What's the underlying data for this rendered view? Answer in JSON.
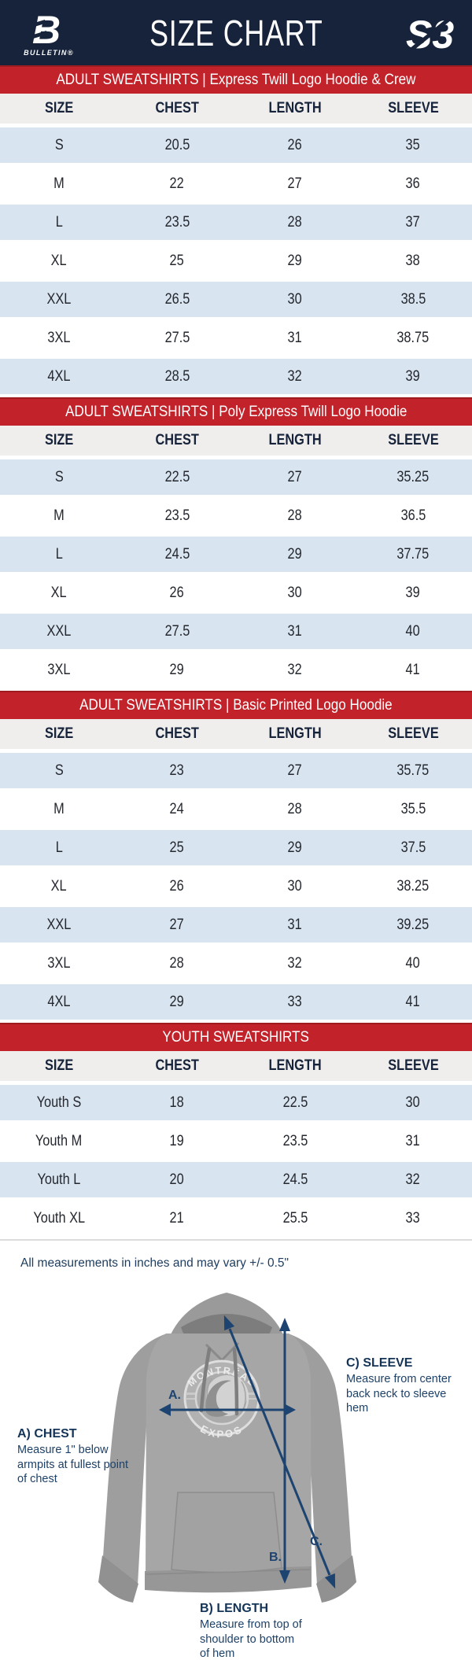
{
  "header": {
    "title": "SIZE CHART",
    "left_logo_mark": "B",
    "left_logo_text": "BULLETIN®",
    "right_logo_mark": "S3"
  },
  "tables": [
    {
      "banner": "ADULT SWEATSHIRTS | Express Twill Logo Hoodie & Crew",
      "columns": [
        "SIZE",
        "CHEST",
        "LENGTH",
        "SLEEVE"
      ],
      "rows": [
        [
          "S",
          "20.5",
          "26",
          "35"
        ],
        [
          "M",
          "22",
          "27",
          "36"
        ],
        [
          "L",
          "23.5",
          "28",
          "37"
        ],
        [
          "XL",
          "25",
          "29",
          "38"
        ],
        [
          "XXL",
          "26.5",
          "30",
          "38.5"
        ],
        [
          "3XL",
          "27.5",
          "31",
          "38.75"
        ],
        [
          "4XL",
          "28.5",
          "32",
          "39"
        ]
      ]
    },
    {
      "banner": "ADULT SWEATSHIRTS | Poly Express Twill Logo Hoodie",
      "columns": [
        "SIZE",
        "CHEST",
        "LENGTH",
        "SLEEVE"
      ],
      "rows": [
        [
          "S",
          "22.5",
          "27",
          "35.25"
        ],
        [
          "M",
          "23.5",
          "28",
          "36.5"
        ],
        [
          "L",
          "24.5",
          "29",
          "37.75"
        ],
        [
          "XL",
          "26",
          "30",
          "39"
        ],
        [
          "XXL",
          "27.5",
          "31",
          "40"
        ],
        [
          "3XL",
          "29",
          "32",
          "41"
        ]
      ]
    },
    {
      "banner": "ADULT SWEATSHIRTS | Basic Printed Logo Hoodie",
      "columns": [
        "SIZE",
        "CHEST",
        "LENGTH",
        "SLEEVE"
      ],
      "rows": [
        [
          "S",
          "23",
          "27",
          "35.75"
        ],
        [
          "M",
          "24",
          "28",
          "35.5"
        ],
        [
          "L",
          "25",
          "29",
          "37.5"
        ],
        [
          "XL",
          "26",
          "30",
          "38.25"
        ],
        [
          "XXL",
          "27",
          "31",
          "39.25"
        ],
        [
          "3XL",
          "28",
          "32",
          "40"
        ],
        [
          "4XL",
          "29",
          "33",
          "41"
        ]
      ]
    },
    {
      "banner": "YOUTH SWEATSHIRTS",
      "columns": [
        "SIZE",
        "CHEST",
        "LENGTH",
        "SLEEVE"
      ],
      "rows": [
        [
          "Youth S",
          "18",
          "22.5",
          "30"
        ],
        [
          "Youth M",
          "19",
          "23.5",
          "31"
        ],
        [
          "Youth L",
          "20",
          "24.5",
          "32"
        ],
        [
          "Youth XL",
          "21",
          "25.5",
          "33"
        ]
      ]
    }
  ],
  "footnote": "All measurements in inches and may vary +/- 0.5\"",
  "diagram": {
    "marker_a": "A.",
    "marker_b": "B.",
    "marker_c": "C.",
    "chest_label": "A) CHEST",
    "chest_desc": "Measure 1\" below armpits at fullest point of chest",
    "length_label": "B) LENGTH",
    "length_desc": "Measure from top of shoulder to bottom of hem",
    "sleeve_label": "C) SLEEVE",
    "sleeve_desc": "Measure from center back neck to sleeve hem",
    "hoodie_logo_top": "MONTRÉAL",
    "hoodie_logo_bottom": "EXPOS"
  },
  "colors": {
    "navy": "#16233a",
    "red": "#c2222a",
    "row_blue": "#d8e4f0",
    "thead_gray": "#efeeec",
    "arrow_navy": "#1d4470",
    "annotation_navy": "#1c3f63"
  }
}
